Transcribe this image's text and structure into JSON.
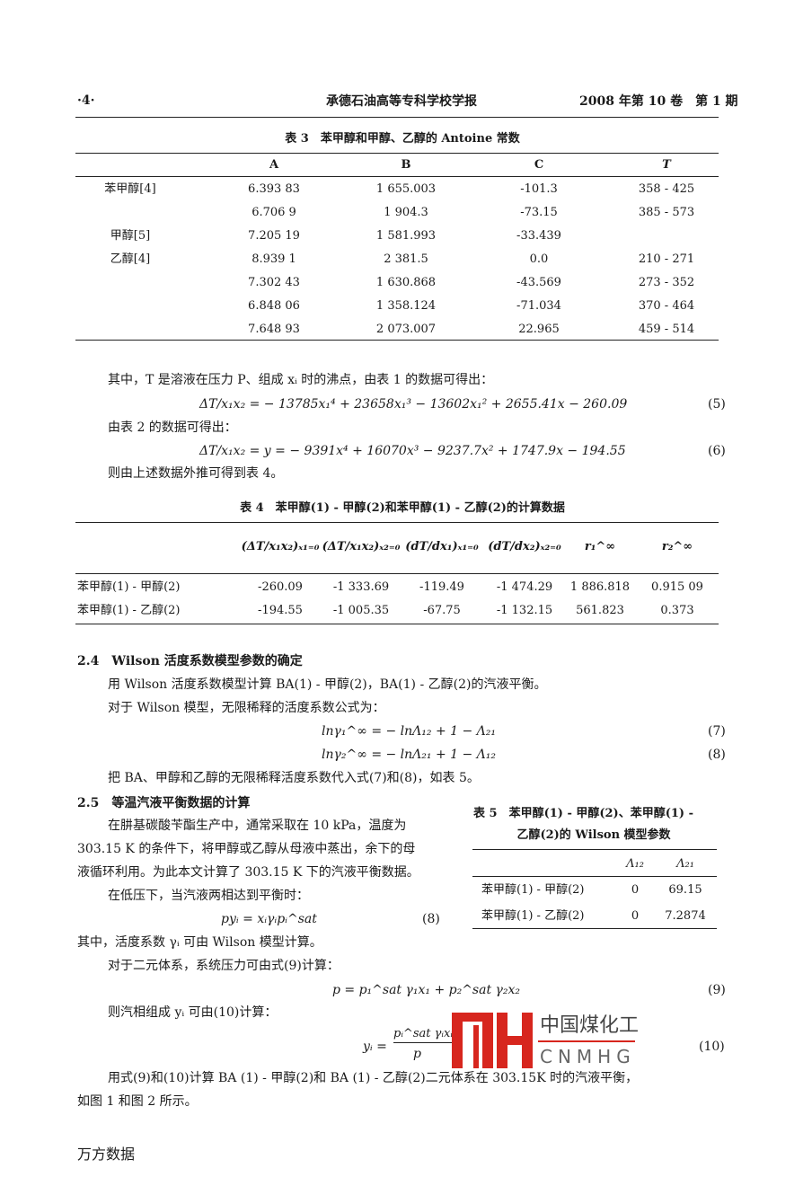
{
  "header": {
    "page_number": "·4·",
    "journal": "承德石油高等专科学校学报",
    "issue": "2008 年第 10 卷　第 1 期"
  },
  "table3": {
    "caption": "表 3　苯甲醇和甲醇、乙醇的 Antoine 常数",
    "columns": [
      "",
      "A",
      "B",
      "C",
      "T"
    ],
    "rows": [
      [
        "苯甲醇[4]",
        "6.393 83",
        "1 655.003",
        "-101.3",
        "358 - 425"
      ],
      [
        "",
        "6.706 9",
        "1 904.3",
        "-73.15",
        "385 - 573"
      ],
      [
        "甲醇[5]",
        "7.205 19",
        "1 581.993",
        "-33.439",
        ""
      ],
      [
        "乙醇[4]",
        "8.939 1",
        "2 381.5",
        "0.0",
        "210 - 271"
      ],
      [
        "",
        "7.302 43",
        "1 630.868",
        "-43.569",
        "273 - 352"
      ],
      [
        "",
        "6.848 06",
        "1 358.124",
        "-71.034",
        "370 - 464"
      ],
      [
        "",
        "7.648 93",
        "2 073.007",
        "22.965",
        "459 - 514"
      ]
    ]
  },
  "body1": {
    "p1": "其中，T 是溶液在压力 P、组成 xᵢ 时的沸点，由表 1 的数据可得出：",
    "eq5": "ΔT/x₁x₂ = − 13785x₁⁴ + 23658x₁³ − 13602x₁² + 2655.41x − 260.09",
    "eq5_no": "(5)",
    "p2": "由表 2 的数据可得出：",
    "eq6": "ΔT/x₁x₂ = y = − 9391x⁴ + 16070x³ − 9237.7x² + 1747.9x − 194.55",
    "eq6_no": "(6)",
    "p3": "则由上述数据外推可得到表 4。"
  },
  "table4": {
    "caption": "表 4　苯甲醇(1) - 甲醇(2)和苯甲醇(1) - 乙醇(2)的计算数据",
    "columns": [
      "",
      "(ΔT/x₁x₂)ₓ₁₌₀",
      "(ΔT/x₁x₂)ₓ₂₌₀",
      "(dT/dx₁)ₓ₁₌₀",
      "(dT/dx₂)ₓ₂₌₀",
      "r₁^∞",
      "r₂^∞"
    ],
    "rows": [
      [
        "苯甲醇(1) - 甲醇(2)",
        "-260.09",
        "-1 333.69",
        "-119.49",
        "-1 474.29",
        "1 886.818",
        "0.915 09"
      ],
      [
        "苯甲醇(1) - 乙醇(2)",
        "-194.55",
        "-1 005.35",
        "-67.75",
        "-1 132.15",
        "561.823",
        "0.373"
      ]
    ]
  },
  "section24": {
    "heading": "2.4　Wilson 活度系数模型参数的确定",
    "p1": "用 Wilson 活度系数模型计算 BA(1) - 甲醇(2)，BA(1) - 乙醇(2)的汽液平衡。",
    "p2": "对于 Wilson 模型，无限稀释的活度系数公式为：",
    "eq7": "lnγ₁^∞ = − lnΛ₁₂ + 1 − Λ₂₁",
    "eq7_no": "(7)",
    "eq8": "lnγ₂^∞ = − lnΛ₂₁ + 1 − Λ₁₂",
    "eq8_no": "(8)",
    "p3": "把 BA、甲醇和乙醇的无限稀释活度系数代入式(7)和(8)，如表 5。"
  },
  "section25": {
    "heading": "2.5　等温汽液平衡数据的计算",
    "lines": [
      "在肼基碳酸苄酯生产中，通常采取在 10 kPa，温度为",
      "303.15 K 的条件下，将甲醇或乙醇从母液中蒸出，余下的母",
      "液循环利用。为此本文计算了 303.15 K 下的汽液平衡数据。",
      "在低压下，当汽液两相达到平衡时："
    ],
    "eq8": "pyᵢ = xᵢγᵢpᵢ^sat",
    "eq8_no": "(8)",
    "p_gamma": "其中，活度系数 γᵢ 可由 Wilson 模型计算。",
    "p_binary": "对于二元体系，系统压力可由式(9)计算：",
    "eq9": "p = p₁^sat γ₁x₁ + p₂^sat γ₂x₂",
    "eq9_no": "(9)",
    "p_vapor": "则汽相组成 yᵢ 可由(10)计算：",
    "eq10_lhs": "yᵢ =",
    "eq10_num": "pᵢ^sat γᵢxᵢ",
    "eq10_den": "p",
    "eq10_no": "(10)",
    "p_final1": "用式(9)和(10)计算 BA (1) - 甲醇(2)和 BA (1) - 乙醇(2)二元体系在 303.15K 时的汽液平衡，",
    "p_final2": "如图 1 和图 2 所示。"
  },
  "table5": {
    "caption1": "表 5　苯甲醇(1) - 甲醇(2)、苯甲醇(1) -",
    "caption2": "乙醇(2)的 Wilson 模型参数",
    "columns": [
      "",
      "Λ₁₂",
      "Λ₂₁"
    ],
    "rows": [
      [
        "苯甲醇(1) - 甲醇(2)",
        "0",
        "69.15"
      ],
      [
        "苯甲醇(1) - 乙醇(2)",
        "0",
        "7.2874"
      ]
    ]
  },
  "watermark": {
    "cn": "中国煤化工",
    "en": "CNMHG",
    "color": "#d7261e"
  },
  "footer": {
    "source": "万方数据"
  }
}
